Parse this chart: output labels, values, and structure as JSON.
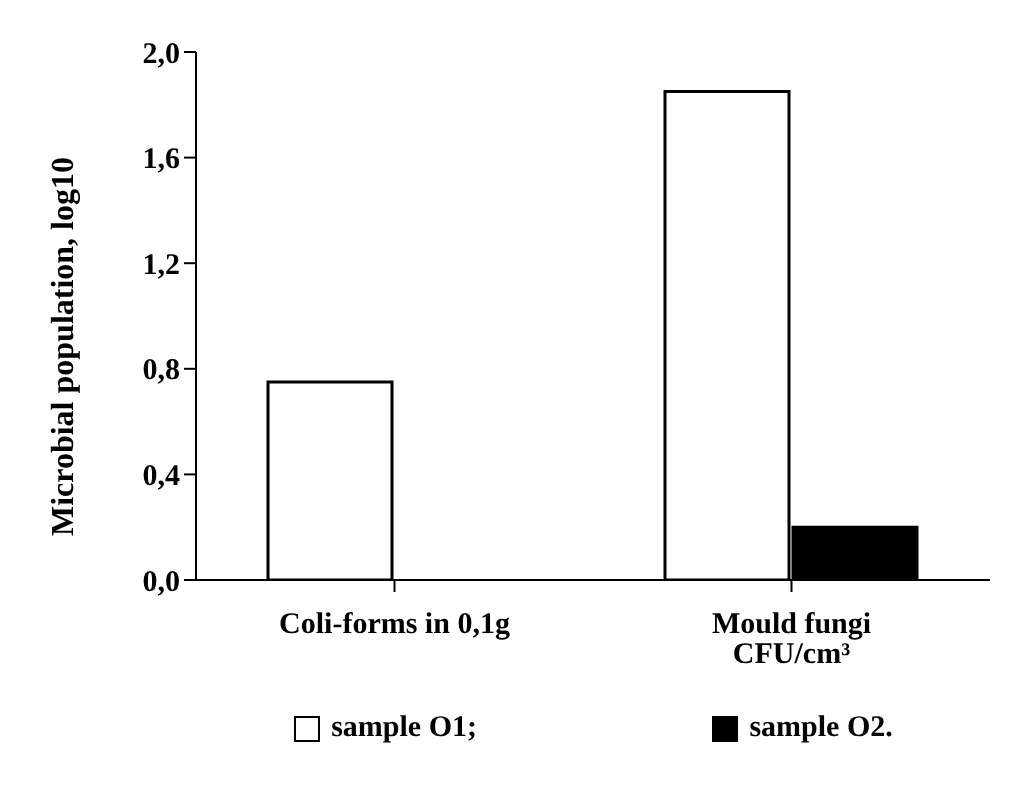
{
  "chart_data": {
    "type": "bar",
    "ylabel": "Microbial population, log10",
    "categories": [
      "Coli-forms in 0,1g",
      "Mould fungi CFU/cm³"
    ],
    "series": [
      {
        "name": "sample O1;",
        "color": "#ffffff",
        "values": [
          0.75,
          1.85
        ]
      },
      {
        "name": "sample O2.",
        "color": "#000000",
        "values": [
          0,
          0.2
        ]
      }
    ],
    "ylim": [
      0,
      2
    ],
    "yticks": [
      {
        "value": 0,
        "label": "0,0"
      },
      {
        "value": 0.4,
        "label": "0,4"
      },
      {
        "value": 0.8,
        "label": "0,8"
      },
      {
        "value": 1.2,
        "label": "1,2"
      },
      {
        "value": 1.6,
        "label": "1,6"
      },
      {
        "value": 2,
        "label": "2,0"
      }
    ],
    "grid": false,
    "legend": "bottom"
  }
}
